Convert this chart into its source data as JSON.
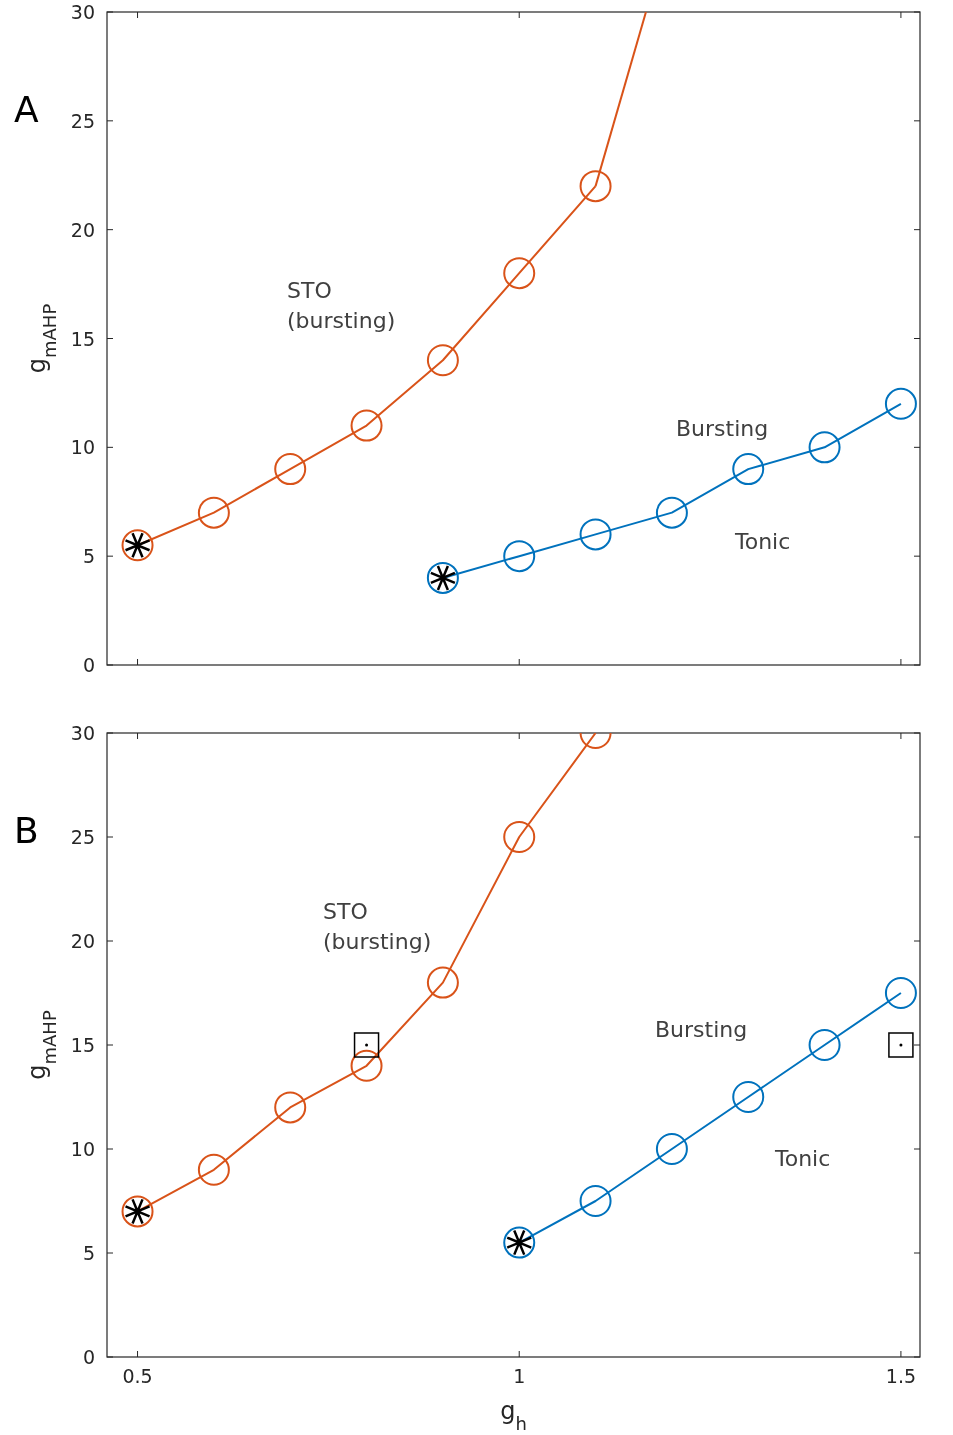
{
  "chart_data": [
    {
      "type": "line",
      "title": "A",
      "ylabel": "g$_{mAHP}$",
      "xlim": [
        0.46,
        1.525
      ],
      "xticks": [
        {
          "value": 0.5,
          "label": null
        },
        {
          "value": 1,
          "label": null
        },
        {
          "value": 1.5,
          "label": null
        }
      ],
      "ylim": [
        0,
        30
      ],
      "yticks": [
        0,
        5,
        10,
        15,
        20,
        25,
        30
      ],
      "tick_labels": "y",
      "grid": false,
      "series": [
        {
          "marker": "circle",
          "color": "#d95319",
          "x": [
            0.5,
            0.6,
            0.7,
            0.8,
            0.9,
            1.0,
            1.1
          ],
          "values": [
            5.5,
            7,
            9,
            11,
            14,
            18,
            22
          ]
        },
        {
          "marker": "none",
          "color": "#d95319",
          "x": [
            1.1,
            1.166
          ],
          "values": [
            22,
            30
          ]
        },
        {
          "marker": "circle",
          "color": "#0072bd",
          "x": [
            0.9,
            1.0,
            1.1,
            1.2,
            1.3,
            1.4,
            1.5
          ],
          "values": [
            4,
            5,
            6,
            7,
            9,
            10,
            12
          ]
        },
        {
          "type": "scatter",
          "marker": "cross",
          "color": "#000000",
          "x": [
            0.5,
            0.9
          ],
          "values": [
            5.5,
            4
          ]
        }
      ],
      "annotations": [
        "STO\n(bursting)",
        "Bursting",
        "Tonic"
      ]
    },
    {
      "type": "line",
      "title": "B",
      "xlabel": "g$_{h}$",
      "ylabel": "g$_{mAHP}$",
      "xlim": [
        0.46,
        1.525
      ],
      "xticks": [
        0.5,
        1,
        1.5
      ],
      "ylim": [
        0,
        30
      ],
      "yticks": [
        0,
        5,
        10,
        15,
        20,
        25,
        30
      ],
      "grid": false,
      "series": [
        {
          "marker": "circle",
          "color": "#d95319",
          "x": [
            0.5,
            0.6,
            0.7,
            0.8,
            0.9,
            1.0,
            1.1
          ],
          "values": [
            7,
            9,
            12,
            14,
            18,
            25,
            30
          ]
        },
        {
          "marker": "circle",
          "color": "#0072bd",
          "x": [
            1.0,
            1.1,
            1.2,
            1.3,
            1.4,
            1.5
          ],
          "values": [
            5.5,
            7.5,
            10,
            12.5,
            15,
            17.5
          ]
        },
        {
          "type": "scatter",
          "marker": "cross",
          "color": "#000000",
          "x": [
            0.5,
            1.0
          ],
          "values": [
            7,
            5.5
          ]
        },
        {
          "type": "scatter",
          "marker": "square",
          "color": "#000000",
          "x": [
            0.8,
            1.5
          ],
          "values": [
            15,
            15
          ]
        }
      ],
      "annotations": [
        "STO\n(bursting)",
        "Bursting",
        "Tonic"
      ]
    }
  ]
}
